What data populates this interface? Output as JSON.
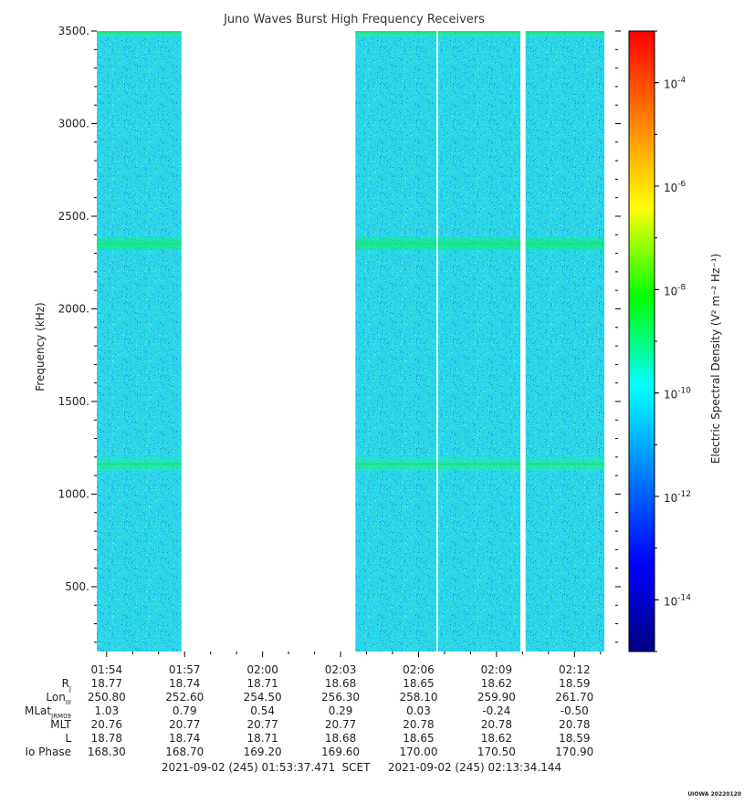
{
  "chart_data": {
    "type": "heatmap",
    "title": "Juno Waves Burst High Frequency Receivers",
    "ylabel": "Frequency (kHz)",
    "colorbar_label": "Electric Spectral Density (V² m⁻² Hz⁻¹)",
    "y_ticks": [
      "3500.",
      "3000.",
      "2500.",
      "2000.",
      "1500.",
      "1000.",
      "500."
    ],
    "y_tick_values": [
      3500,
      3000,
      2500,
      2000,
      1500,
      1000,
      500
    ],
    "ylim": [
      150,
      3500
    ],
    "colorbar_ticks": [
      {
        "base": "10",
        "exp": "-4",
        "value": -4
      },
      {
        "base": "10",
        "exp": "-6",
        "value": -6
      },
      {
        "base": "10",
        "exp": "-8",
        "value": -8
      },
      {
        "base": "10",
        "exp": "-10",
        "value": -10
      },
      {
        "base": "10",
        "exp": "-12",
        "value": -12
      },
      {
        "base": "10",
        "exp": "-14",
        "value": -14
      }
    ],
    "colorbar_log_range": [
      -15,
      -3
    ],
    "x_tick_labels": [
      "01:54",
      "01:57",
      "02:00",
      "02:03",
      "02:06",
      "02:09",
      "02:12"
    ],
    "x_tick_minutes": [
      114,
      117,
      120,
      123,
      126,
      129,
      132
    ],
    "xlim_minutes": [
      113.62,
      133.57
    ],
    "data_segments_minutes": [
      [
        113.62,
        116.88
      ],
      [
        123.57,
        126.69
      ],
      [
        126.75,
        129.92
      ],
      [
        130.12,
        133.15
      ]
    ],
    "emission_bands_khz": [
      {
        "center": 3500,
        "log_density": -9.8
      },
      {
        "center": 2350,
        "log_density": -9.3
      },
      {
        "center": 1160,
        "log_density": -9.6
      }
    ],
    "background_log_density": -11.6,
    "colors": {
      "colormap": [
        "#00007f",
        "#0000ff",
        "#007fff",
        "#00ffff",
        "#00ff00",
        "#ffff00",
        "#ff7f00",
        "#ff0000"
      ],
      "background_cyan": "#2ad6e8"
    }
  },
  "ephemeris": {
    "rows": [
      {
        "label": "R",
        "sub": "J",
        "values": [
          "18.77",
          "18.74",
          "18.71",
          "18.68",
          "18.65",
          "18.62",
          "18.59"
        ]
      },
      {
        "label": "Lon",
        "sub": "III",
        "values": [
          "250.80",
          "252.60",
          "254.50",
          "256.30",
          "258.10",
          "259.90",
          "261.70"
        ]
      },
      {
        "label": "MLat",
        "sub": "JRM09",
        "values": [
          "1.03",
          "0.79",
          "0.54",
          "0.29",
          "0.03",
          "-0.24",
          "-0.50"
        ]
      },
      {
        "label": "MLT",
        "sub": "",
        "values": [
          "20.76",
          "20.77",
          "20.77",
          "20.77",
          "20.78",
          "20.78",
          "20.78"
        ]
      },
      {
        "label": "L",
        "sub": "",
        "values": [
          "18.78",
          "18.74",
          "18.71",
          "18.68",
          "18.65",
          "18.62",
          "18.59"
        ]
      },
      {
        "label": "Io Phase",
        "sub": "",
        "values": [
          "168.30",
          "168.70",
          "169.20",
          "169.60",
          "170.00",
          "170.50",
          "170.90"
        ]
      }
    ]
  },
  "footer": {
    "start": "2021-09-02 (245) 01:53:37.471",
    "scet": "SCET",
    "end": "2021-09-02 (245) 02:13:34.144",
    "credit": "UIOWA 20220120"
  }
}
